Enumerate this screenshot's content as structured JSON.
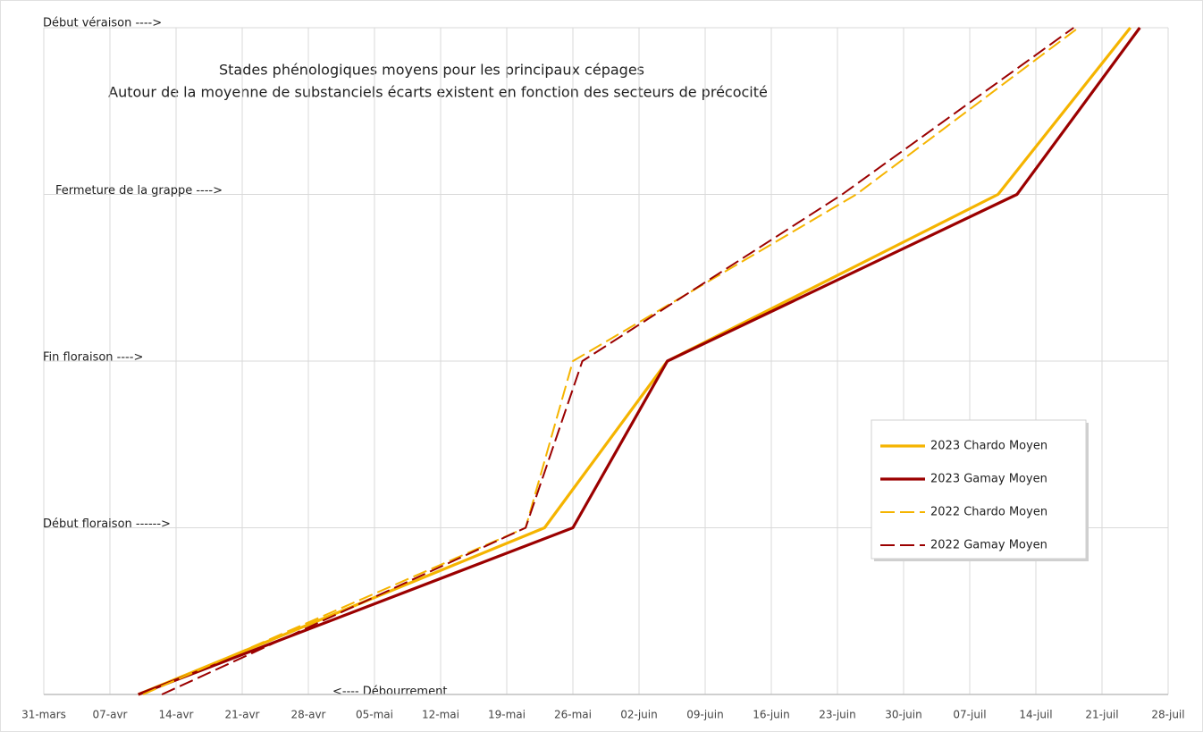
{
  "chart_data": {
    "type": "line",
    "title": "Stades phénologiques moyens pour les principaux cépages",
    "subtitle": "Autour de la moyenne de substanciels écarts existent en fonction des secteurs de précocité",
    "xlim": [
      0,
      119
    ],
    "xticks": [
      {
        "value": 0,
        "label": "31-mars"
      },
      {
        "value": 7,
        "label": "07-avr"
      },
      {
        "value": 14,
        "label": "14-avr"
      },
      {
        "value": 21,
        "label": "21-avr"
      },
      {
        "value": 28,
        "label": "28-avr"
      },
      {
        "value": 35,
        "label": "05-mai"
      },
      {
        "value": 42,
        "label": "12-mai"
      },
      {
        "value": 49,
        "label": "19-mai"
      },
      {
        "value": 56,
        "label": "26-mai"
      },
      {
        "value": 63,
        "label": "02-juin"
      },
      {
        "value": 70,
        "label": "09-juin"
      },
      {
        "value": 77,
        "label": "16-juin"
      },
      {
        "value": 84,
        "label": "23-juin"
      },
      {
        "value": 91,
        "label": "30-juin"
      },
      {
        "value": 98,
        "label": "07-juil"
      },
      {
        "value": 105,
        "label": "14-juil"
      },
      {
        "value": 112,
        "label": "21-juil"
      },
      {
        "value": 119,
        "label": "28-juil"
      }
    ],
    "ylim": [
      0,
      4
    ],
    "yticks": [
      {
        "value": 0,
        "label": "<---- Débourrement"
      },
      {
        "value": 1,
        "label": "Début floraison ------>"
      },
      {
        "value": 2,
        "label": "Fin floraison ---->"
      },
      {
        "value": 3,
        "label": "Fermeture de la grappe ---->"
      },
      {
        "value": 4,
        "label": "Début véraison ---->"
      }
    ],
    "grid": true,
    "legend": "right",
    "series": [
      {
        "name": "2023 Chardo Moyen",
        "color": "#f5b400",
        "dash": false,
        "x": [
          10,
          53,
          66,
          101,
          115
        ],
        "values": [
          0,
          1,
          2,
          3,
          4
        ]
      },
      {
        "name": "2023 Gamay Moyen",
        "color": "#9b0000",
        "dash": false,
        "x": [
          10,
          56,
          66,
          103,
          116
        ],
        "values": [
          0,
          1,
          2,
          3,
          4
        ]
      },
      {
        "name": "2022 Chardo Moyen",
        "color": "#f5b400",
        "dash": true,
        "x": [
          10.5,
          51,
          56,
          86,
          109.5
        ],
        "values": [
          0,
          1,
          2,
          3,
          4
        ]
      },
      {
        "name": "2022 Gamay Moyen",
        "color": "#9b0000",
        "dash": true,
        "x": [
          12.5,
          51,
          57,
          84.5,
          109
        ],
        "values": [
          0,
          1,
          2,
          3,
          4
        ]
      }
    ]
  }
}
